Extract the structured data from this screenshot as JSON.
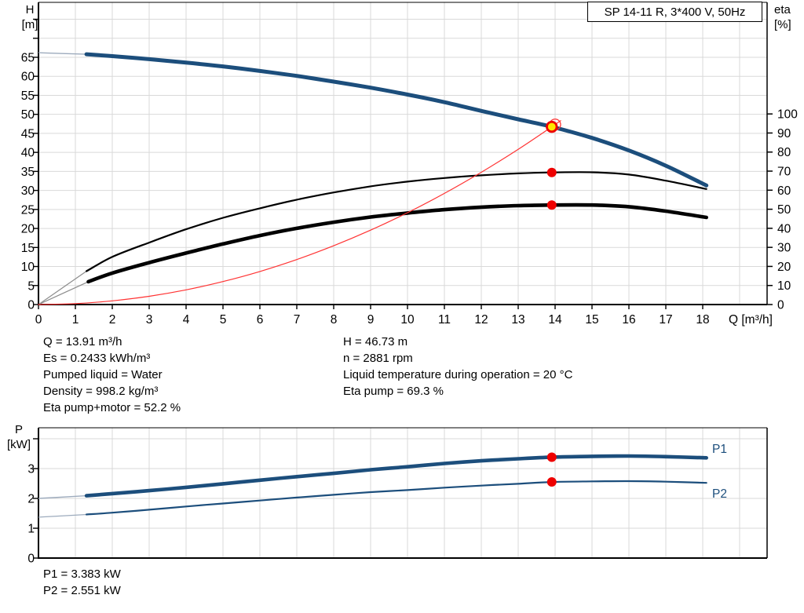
{
  "title_box": {
    "label": "SP 14-11 R, 3*400 V, 50Hz"
  },
  "labels": {
    "h_axis_1": "H",
    "h_axis_2": "[m]",
    "eta_axis_1": "eta",
    "eta_axis_2": "[%]",
    "q_axis": "Q [m³/h]",
    "p_axis_1": "P",
    "p_axis_2": "[kW]",
    "p1": "P1",
    "p2": "P2"
  },
  "info": {
    "left": [
      "Q = 13.91 m³/h",
      "Es = 0.2433 kWh/m³",
      "Pumped liquid = Water",
      "Density = 998.2 kg/m³",
      "Eta pump+motor = 52.2 %"
    ],
    "right": [
      "H = 46.73 m",
      "n = 2881 rpm",
      "Liquid temperature during operation = 20 °C",
      "Eta pump = 69.3 %"
    ]
  },
  "results": {
    "p1": "P1 = 3.383 kW",
    "p2": "P2 = 2.551 kW"
  },
  "colors": {
    "curve_blue": "#1c4e7c",
    "curve_black": "#000000",
    "system_red": "#ff3333",
    "dot_red": "#ee0000",
    "duty_yellow": "#ffe600",
    "grid": "#d9d9d9",
    "frame": "#000000",
    "lead_blue": "#9dabbd",
    "lead_gray": "#8c8c8c"
  },
  "chart_data": [
    {
      "id": "hq",
      "type": "line",
      "title": "SP 14-11 R, 3*400 V, 50Hz",
      "xlabel": "Q [m³/h]",
      "ylabel": "H [m]",
      "ylabel_right": "eta [%]",
      "xlim": [
        0,
        19.75
      ],
      "ylim": [
        0,
        79.4
      ],
      "ylim_right": [
        0,
        158.6
      ],
      "grid": true,
      "x_ticks": [
        0,
        1,
        2,
        3,
        4,
        5,
        6,
        7,
        8,
        9,
        10,
        11,
        12,
        13,
        14,
        15,
        16,
        17,
        18
      ],
      "y_ticks": [
        0,
        5,
        10,
        15,
        20,
        25,
        30,
        35,
        40,
        45,
        50,
        55,
        60,
        65
      ],
      "y_ticks_unlabeled": [
        70,
        75
      ],
      "y_ticks_right": [
        0,
        10,
        20,
        30,
        40,
        50,
        60,
        70,
        80,
        90,
        100
      ],
      "series": [
        {
          "name": "eta-pump-curve",
          "axis": "eta",
          "color": "#000000",
          "width": 2.2,
          "leadColor": "#8c8c8c",
          "leadWidth": 1.2,
          "lead": [
            [
              0,
              0
            ],
            [
              1.3,
              17.5
            ]
          ],
          "points": [
            [
              1.3,
              17.5
            ],
            [
              2,
              25
            ],
            [
              3,
              32.5
            ],
            [
              4,
              39.5
            ],
            [
              5,
              45.5
            ],
            [
              6,
              50.5
            ],
            [
              7,
              55
            ],
            [
              8,
              58.8
            ],
            [
              9,
              62
            ],
            [
              10,
              64.5
            ],
            [
              11,
              66.4
            ],
            [
              12,
              67.8
            ],
            [
              13,
              68.8
            ],
            [
              13.91,
              69.3
            ],
            [
              15,
              69.4
            ],
            [
              16,
              68.2
            ],
            [
              17,
              65.0
            ],
            [
              18.1,
              60.6
            ]
          ]
        },
        {
          "name": "eta-pump-motor-curve",
          "axis": "eta",
          "color": "#000000",
          "width": 4.6,
          "leadColor": "#8c8c8c",
          "leadWidth": 1.2,
          "lead": [
            [
              0,
              0
            ],
            [
              1.35,
              12
            ]
          ],
          "points": [
            [
              1.35,
              12
            ],
            [
              2,
              16.5
            ],
            [
              3,
              22
            ],
            [
              4,
              27
            ],
            [
              5,
              31.8
            ],
            [
              6,
              36.2
            ],
            [
              7,
              40
            ],
            [
              8,
              43.2
            ],
            [
              9,
              45.9
            ],
            [
              10,
              48
            ],
            [
              11,
              49.8
            ],
            [
              12,
              51.1
            ],
            [
              13,
              51.9
            ],
            [
              13.91,
              52.2
            ],
            [
              15,
              52.2
            ],
            [
              16,
              51.3
            ],
            [
              17,
              49.0
            ],
            [
              18.1,
              45.7
            ]
          ]
        },
        {
          "name": "system-curve",
          "axis": "H",
          "color": "#ff3333",
          "width": 1.2,
          "points": [
            [
              0,
              0
            ],
            [
              1,
              0.24
            ],
            [
              2,
              0.97
            ],
            [
              3,
              2.17
            ],
            [
              4,
              3.86
            ],
            [
              5,
              6.04
            ],
            [
              6,
              8.69
            ],
            [
              7,
              11.83
            ],
            [
              8,
              15.46
            ],
            [
              9,
              19.56
            ],
            [
              10,
              24.15
            ],
            [
              11,
              29.22
            ],
            [
              12,
              34.77
            ],
            [
              13,
              40.81
            ],
            [
              13.91,
              46.73
            ],
            [
              14.15,
              48.35
            ]
          ]
        },
        {
          "name": "head-curve",
          "axis": "H",
          "color": "#1c4e7c",
          "width": 5,
          "leadColor": "#9dabbd",
          "leadWidth": 1.4,
          "lead": [
            [
              0,
              66.2
            ],
            [
              1.3,
              65.8
            ]
          ],
          "points": [
            [
              1.3,
              65.8
            ],
            [
              2,
              65.3
            ],
            [
              3,
              64.5
            ],
            [
              4,
              63.6
            ],
            [
              5,
              62.6
            ],
            [
              6,
              61.4
            ],
            [
              7,
              60.1
            ],
            [
              8,
              58.6
            ],
            [
              9,
              57.0
            ],
            [
              10,
              55.2
            ],
            [
              11,
              53.2
            ],
            [
              12,
              50.9
            ],
            [
              13,
              48.7
            ],
            [
              13.91,
              46.73
            ],
            [
              15,
              43.8
            ],
            [
              16,
              40.5
            ],
            [
              17,
              36.5
            ],
            [
              18.1,
              31.3
            ]
          ]
        }
      ],
      "markers": [
        {
          "name": "requested-duty-ring",
          "shape": "ring",
          "q": 14.0,
          "value": 47.3,
          "axis": "H",
          "r": 7,
          "stroke": "#ff3333",
          "strokeWidth": 1.3
        },
        {
          "name": "duty-point",
          "shape": "dot",
          "q": 13.91,
          "value": 46.73,
          "axis": "H",
          "r": 6.3,
          "fill": "#ffe600",
          "stroke": "#ee0000",
          "strokeWidth": 2.8,
          "interactable": true
        },
        {
          "name": "eta-pump-point",
          "shape": "dot",
          "q": 13.91,
          "value": 69.3,
          "axis": "eta",
          "r": 6,
          "fill": "#ee0000"
        },
        {
          "name": "eta-pump-motor-point",
          "shape": "dot",
          "q": 13.91,
          "value": 52.2,
          "axis": "eta",
          "r": 6,
          "fill": "#ee0000"
        }
      ],
      "operating_point": {
        "Q": 13.91,
        "H": 46.73,
        "eta_pump": 69.3,
        "eta_pump_motor": 52.2,
        "Es": 0.2433,
        "n_rpm": 2881
      }
    },
    {
      "id": "power",
      "type": "line",
      "xlabel": "",
      "ylabel": "P [kW]",
      "xlim": [
        0,
        19.75
      ],
      "ylim": [
        0,
        4.37
      ],
      "grid": true,
      "x_ticks": [],
      "y_ticks": [
        0,
        1,
        2,
        3
      ],
      "y_ticks_unlabeled": [
        4
      ],
      "series": [
        {
          "name": "p1-curve",
          "axis": "P",
          "color": "#1c4e7c",
          "width": 4.6,
          "leadColor": "#9dabbd",
          "leadWidth": 1.4,
          "lead": [
            [
              0,
              2.0
            ],
            [
              1.3,
              2.09
            ]
          ],
          "points": [
            [
              1.3,
              2.09
            ],
            [
              2,
              2.16
            ],
            [
              3,
              2.26
            ],
            [
              4,
              2.37
            ],
            [
              5,
              2.49
            ],
            [
              6,
              2.61
            ],
            [
              7,
              2.73
            ],
            [
              8,
              2.84
            ],
            [
              9,
              2.96
            ],
            [
              10,
              3.06
            ],
            [
              11,
              3.17
            ],
            [
              12,
              3.26
            ],
            [
              13,
              3.33
            ],
            [
              13.91,
              3.383
            ],
            [
              15,
              3.41
            ],
            [
              16,
              3.42
            ],
            [
              17,
              3.4
            ],
            [
              18.1,
              3.36
            ]
          ]
        },
        {
          "name": "p2-curve",
          "axis": "P",
          "color": "#1c4e7c",
          "width": 2.2,
          "leadColor": "#9dabbd",
          "leadWidth": 1.2,
          "lead": [
            [
              0,
              1.37
            ],
            [
              1.3,
              1.46
            ]
          ],
          "points": [
            [
              1.3,
              1.46
            ],
            [
              2,
              1.52
            ],
            [
              3,
              1.62
            ],
            [
              4,
              1.73
            ],
            [
              5,
              1.83
            ],
            [
              6,
              1.93
            ],
            [
              7,
              2.03
            ],
            [
              8,
              2.12
            ],
            [
              9,
              2.21
            ],
            [
              10,
              2.28
            ],
            [
              11,
              2.36
            ],
            [
              12,
              2.43
            ],
            [
              13,
              2.49
            ],
            [
              13.91,
              2.551
            ],
            [
              15,
              2.57
            ],
            [
              16,
              2.58
            ],
            [
              17,
              2.56
            ],
            [
              18.1,
              2.52
            ]
          ]
        }
      ],
      "markers": [
        {
          "name": "p1-point",
          "shape": "dot",
          "q": 13.91,
          "value": 3.383,
          "axis": "P",
          "r": 6,
          "fill": "#ee0000"
        },
        {
          "name": "p2-point",
          "shape": "dot",
          "q": 13.91,
          "value": 2.551,
          "axis": "P",
          "r": 6,
          "fill": "#ee0000"
        }
      ],
      "values": {
        "P1_kW": 3.383,
        "P2_kW": 2.551
      }
    }
  ]
}
